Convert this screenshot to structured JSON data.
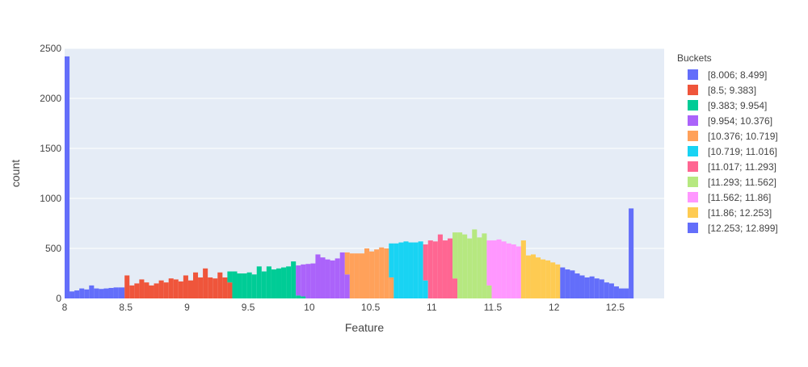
{
  "chart_data": {
    "type": "bar",
    "subtype": "stacked-histogram",
    "xlabel": "Feature",
    "ylabel": "count",
    "xlim": [
      8.0,
      12.9
    ],
    "ylim": [
      0,
      2500
    ],
    "x_ticks": [
      {
        "value": 8,
        "label": "8"
      },
      {
        "value": 8.5,
        "label": "8.5"
      },
      {
        "value": 9,
        "label": "9"
      },
      {
        "value": 9.5,
        "label": "9.5"
      },
      {
        "value": 10,
        "label": "10"
      },
      {
        "value": 10.5,
        "label": "10.5"
      },
      {
        "value": 11,
        "label": "11"
      },
      {
        "value": 11.5,
        "label": "11.5"
      },
      {
        "value": 12,
        "label": "12"
      },
      {
        "value": 12.5,
        "label": "12.5"
      }
    ],
    "y_ticks": [
      {
        "value": 0,
        "label": "0"
      },
      {
        "value": 500,
        "label": "500"
      },
      {
        "value": 1000,
        "label": "1000"
      },
      {
        "value": 1500,
        "label": "1500"
      },
      {
        "value": 2000,
        "label": "2000"
      },
      {
        "value": 2500,
        "label": "2500"
      }
    ],
    "grid": true,
    "legend_title": "Buckets",
    "legend_position": "right",
    "series": [
      {
        "name": "[8.006; 8.499]",
        "color": "#636efa",
        "bins": [
          [
            8.0,
            8.04,
            2420
          ],
          [
            8.04,
            8.08,
            70
          ],
          [
            8.08,
            8.12,
            80
          ],
          [
            8.12,
            8.16,
            100
          ],
          [
            8.16,
            8.2,
            90
          ],
          [
            8.2,
            8.24,
            130
          ],
          [
            8.24,
            8.28,
            100
          ],
          [
            8.28,
            8.32,
            95
          ],
          [
            8.32,
            8.36,
            100
          ],
          [
            8.36,
            8.4,
            105
          ],
          [
            8.4,
            8.44,
            110
          ],
          [
            8.44,
            8.49,
            110
          ]
        ]
      },
      {
        "name": "[8.5; 9.383]",
        "color": "#ef553b",
        "bins": [
          [
            8.49,
            8.53,
            230
          ],
          [
            8.53,
            8.57,
            130
          ],
          [
            8.57,
            8.61,
            150
          ],
          [
            8.61,
            8.65,
            190
          ],
          [
            8.65,
            8.69,
            160
          ],
          [
            8.69,
            8.73,
            130
          ],
          [
            8.73,
            8.77,
            150
          ],
          [
            8.77,
            8.81,
            180
          ],
          [
            8.81,
            8.85,
            160
          ],
          [
            8.85,
            8.89,
            200
          ],
          [
            8.89,
            8.93,
            190
          ],
          [
            8.93,
            8.97,
            170
          ],
          [
            8.97,
            9.01,
            230
          ],
          [
            9.01,
            9.05,
            180
          ],
          [
            9.05,
            9.09,
            260
          ],
          [
            9.09,
            9.13,
            210
          ],
          [
            9.13,
            9.17,
            300
          ],
          [
            9.17,
            9.21,
            210
          ],
          [
            9.21,
            9.25,
            200
          ],
          [
            9.25,
            9.29,
            260
          ],
          [
            9.29,
            9.33,
            210
          ],
          [
            9.33,
            9.37,
            160
          ]
        ]
      },
      {
        "name": "[9.383; 9.954]",
        "color": "#00cc96",
        "bins": [
          [
            9.33,
            9.37,
            110
          ],
          [
            9.37,
            9.41,
            270
          ],
          [
            9.41,
            9.45,
            250
          ],
          [
            9.45,
            9.49,
            250
          ],
          [
            9.49,
            9.53,
            260
          ],
          [
            9.53,
            9.57,
            240
          ],
          [
            9.57,
            9.61,
            320
          ],
          [
            9.61,
            9.65,
            270
          ],
          [
            9.65,
            9.69,
            320
          ],
          [
            9.69,
            9.73,
            290
          ],
          [
            9.73,
            9.77,
            300
          ],
          [
            9.77,
            9.81,
            310
          ],
          [
            9.81,
            9.85,
            320
          ],
          [
            9.85,
            9.89,
            370
          ],
          [
            9.89,
            9.93,
            30
          ],
          [
            9.93,
            9.97,
            20
          ]
        ]
      },
      {
        "name": "[9.954; 10.376]",
        "color": "#ab63fa",
        "bins": [
          [
            9.89,
            9.93,
            300
          ],
          [
            9.93,
            9.97,
            320
          ],
          [
            9.97,
            10.01,
            345
          ],
          [
            10.01,
            10.05,
            350
          ],
          [
            10.05,
            10.09,
            440
          ],
          [
            10.09,
            10.13,
            410
          ],
          [
            10.13,
            10.17,
            390
          ],
          [
            10.17,
            10.21,
            380
          ],
          [
            10.21,
            10.25,
            400
          ],
          [
            10.25,
            10.29,
            460
          ],
          [
            10.29,
            10.33,
            240
          ]
        ]
      },
      {
        "name": "[10.376; 10.719]",
        "color": "#ffa15a",
        "bins": [
          [
            10.29,
            10.33,
            220
          ],
          [
            10.33,
            10.37,
            450
          ],
          [
            10.37,
            10.41,
            450
          ],
          [
            10.41,
            10.45,
            450
          ],
          [
            10.45,
            10.49,
            500
          ],
          [
            10.49,
            10.53,
            470
          ],
          [
            10.53,
            10.57,
            490
          ],
          [
            10.57,
            10.61,
            510
          ],
          [
            10.61,
            10.65,
            500
          ],
          [
            10.65,
            10.69,
            210
          ]
        ]
      },
      {
        "name": "[10.719; 11.016]",
        "color": "#19d3f3",
        "bins": [
          [
            10.65,
            10.69,
            340
          ],
          [
            10.69,
            10.73,
            550
          ],
          [
            10.73,
            10.77,
            560
          ],
          [
            10.77,
            10.81,
            570
          ],
          [
            10.81,
            10.85,
            560
          ],
          [
            10.85,
            10.89,
            560
          ],
          [
            10.89,
            10.93,
            570
          ],
          [
            10.93,
            10.97,
            180
          ]
        ]
      },
      {
        "name": "[11.017; 11.293]",
        "color": "#ff6692",
        "bins": [
          [
            10.93,
            10.97,
            360
          ],
          [
            10.97,
            11.01,
            580
          ],
          [
            11.01,
            11.05,
            570
          ],
          [
            11.05,
            11.09,
            640
          ],
          [
            11.09,
            11.13,
            580
          ],
          [
            11.13,
            11.17,
            600
          ],
          [
            11.17,
            11.21,
            200
          ]
        ]
      },
      {
        "name": "[11.293; 11.562]",
        "color": "#b6e880",
        "bins": [
          [
            11.17,
            11.21,
            460
          ],
          [
            11.21,
            11.25,
            660
          ],
          [
            11.25,
            11.29,
            640
          ],
          [
            11.29,
            11.33,
            600
          ],
          [
            11.33,
            11.37,
            690
          ],
          [
            11.37,
            11.41,
            610
          ],
          [
            11.41,
            11.45,
            650
          ],
          [
            11.45,
            11.49,
            130
          ]
        ]
      },
      {
        "name": "[11.562; 11.86]",
        "color": "#ff97ff",
        "bins": [
          [
            11.45,
            11.49,
            450
          ],
          [
            11.49,
            11.53,
            580
          ],
          [
            11.53,
            11.57,
            590
          ],
          [
            11.57,
            11.61,
            570
          ],
          [
            11.61,
            11.65,
            550
          ],
          [
            11.65,
            11.69,
            540
          ],
          [
            11.69,
            11.73,
            520
          ]
        ]
      },
      {
        "name": "[11.86; 12.253]",
        "color": "#fecb52",
        "bins": [
          [
            11.73,
            11.77,
            580
          ],
          [
            11.77,
            11.81,
            430
          ],
          [
            11.81,
            11.85,
            440
          ],
          [
            11.85,
            11.89,
            410
          ],
          [
            11.89,
            11.93,
            390
          ],
          [
            11.93,
            11.97,
            380
          ],
          [
            11.97,
            12.01,
            360
          ],
          [
            12.01,
            12.05,
            340
          ]
        ]
      },
      {
        "name": "[12.253; 12.899]",
        "color": "#636efa",
        "bins": [
          [
            12.05,
            12.09,
            310
          ],
          [
            12.09,
            12.13,
            290
          ],
          [
            12.13,
            12.17,
            280
          ],
          [
            12.17,
            12.21,
            250
          ],
          [
            12.21,
            12.25,
            230
          ],
          [
            12.25,
            12.29,
            210
          ],
          [
            12.29,
            12.33,
            220
          ],
          [
            12.33,
            12.37,
            200
          ],
          [
            12.37,
            12.41,
            190
          ],
          [
            12.41,
            12.45,
            160
          ],
          [
            12.45,
            12.49,
            150
          ],
          [
            12.49,
            12.53,
            120
          ],
          [
            12.53,
            12.57,
            100
          ],
          [
            12.57,
            12.61,
            100
          ],
          [
            12.61,
            12.65,
            900
          ]
        ]
      }
    ]
  }
}
